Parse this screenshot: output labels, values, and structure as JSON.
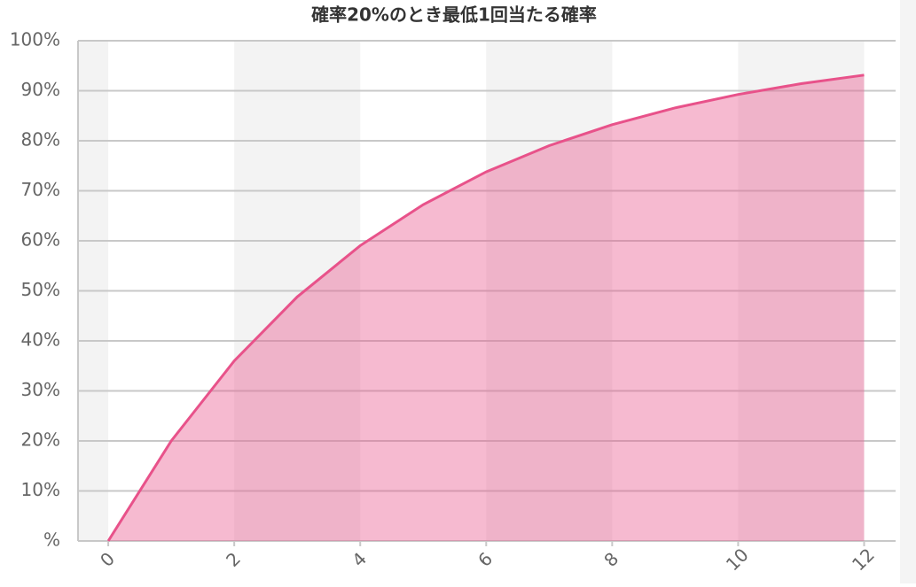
{
  "chart_data": {
    "type": "area",
    "title": "確率20%のとき最低1回当たる確率",
    "x": [
      0,
      1,
      2,
      3,
      4,
      5,
      6,
      7,
      8,
      9,
      10,
      11,
      12
    ],
    "series": [
      {
        "color": "#e8528a",
        "values": [
          0,
          20,
          36,
          48.8,
          59.04,
          67.23,
          73.79,
          79.03,
          83.22,
          86.58,
          89.26,
          91.41,
          93.13
        ]
      }
    ],
    "xlim": [
      -0.48,
      12.5
    ],
    "xticks": [
      0,
      2,
      4,
      6,
      8,
      10,
      12
    ],
    "ylim": [
      0,
      100
    ],
    "yticks": [
      {
        "value": 0,
        "label": "%"
      },
      {
        "value": 10,
        "label": "10%"
      },
      {
        "value": 20,
        "label": "20%"
      },
      {
        "value": 30,
        "label": "30%"
      },
      {
        "value": 40,
        "label": "40%"
      },
      {
        "value": 50,
        "label": "50%"
      },
      {
        "value": 60,
        "label": "60%"
      },
      {
        "value": 70,
        "label": "70%"
      },
      {
        "value": 80,
        "label": "80%"
      },
      {
        "value": 90,
        "label": "90%"
      },
      {
        "value": 100,
        "label": "100%"
      }
    ],
    "grid": true,
    "alternate_bands": true
  }
}
